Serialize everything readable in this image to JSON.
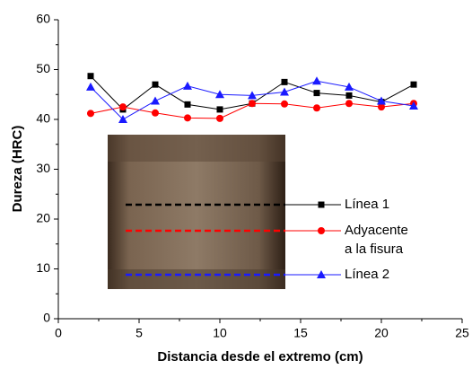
{
  "chart_data": {
    "type": "line",
    "xlabel": "Distancia desde el extremo (cm)",
    "ylabel": "Dureza (HRC)",
    "x": [
      2,
      4,
      6,
      8,
      10,
      12,
      14,
      16,
      18,
      20,
      22
    ],
    "series": [
      {
        "name": "Línea 1",
        "color": "#000000",
        "marker": "square",
        "values": [
          48.7,
          42,
          47,
          43,
          42,
          43.2,
          47.5,
          45.3,
          44.8,
          43.5,
          47
        ]
      },
      {
        "name": "Adyacente a la fisura",
        "color": "#ff0000",
        "marker": "circle",
        "values": [
          41.2,
          42.5,
          41.3,
          40.3,
          40.2,
          43.2,
          43.1,
          42.3,
          43.2,
          42.5,
          43.2
        ]
      },
      {
        "name": "Línea 2",
        "color": "#1a1aff",
        "marker": "triangle",
        "values": [
          46.5,
          40,
          43.7,
          46.7,
          45,
          44.8,
          45.5,
          47.7,
          46.5,
          43.7,
          42.7
        ]
      }
    ],
    "xlim": [
      0,
      25
    ],
    "xticks": [
      0,
      5,
      10,
      15,
      20,
      25
    ],
    "ylim": [
      0,
      60
    ],
    "yticks": [
      0,
      10,
      20,
      30,
      40,
      50,
      60
    ]
  }
}
